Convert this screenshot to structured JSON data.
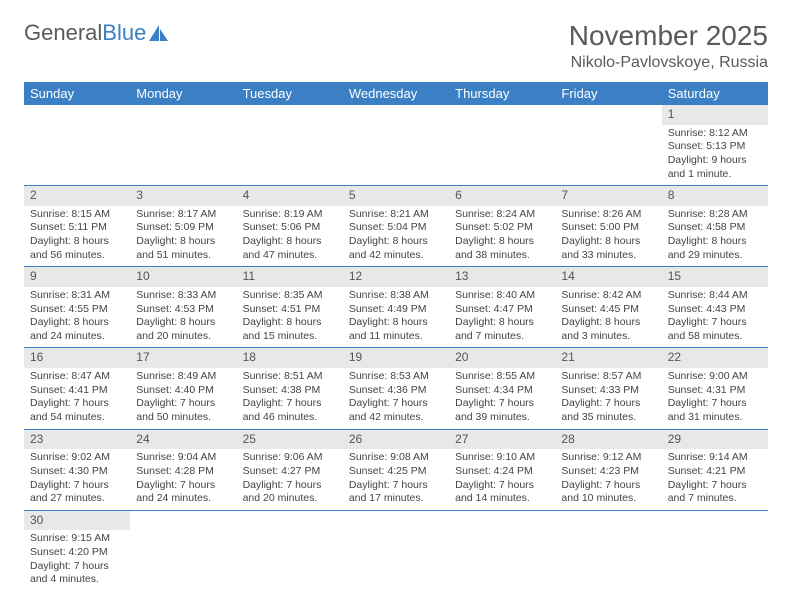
{
  "logo": {
    "text1": "General",
    "text2": "Blue"
  },
  "title": "November 2025",
  "location": "Nikolo-Pavlovskoye, Russia",
  "colors": {
    "header_bg": "#3b7fc4",
    "header_fg": "#ffffff",
    "daynum_bg": "#e8e8e8",
    "row_border": "#3b7fc4",
    "text": "#444444"
  },
  "weekdays": [
    "Sunday",
    "Monday",
    "Tuesday",
    "Wednesday",
    "Thursday",
    "Friday",
    "Saturday"
  ],
  "weeks": [
    [
      null,
      null,
      null,
      null,
      null,
      null,
      {
        "n": "1",
        "sunrise": "8:12 AM",
        "sunset": "5:13 PM",
        "daylight": "9 hours and 1 minute."
      }
    ],
    [
      {
        "n": "2",
        "sunrise": "8:15 AM",
        "sunset": "5:11 PM",
        "daylight": "8 hours and 56 minutes."
      },
      {
        "n": "3",
        "sunrise": "8:17 AM",
        "sunset": "5:09 PM",
        "daylight": "8 hours and 51 minutes."
      },
      {
        "n": "4",
        "sunrise": "8:19 AM",
        "sunset": "5:06 PM",
        "daylight": "8 hours and 47 minutes."
      },
      {
        "n": "5",
        "sunrise": "8:21 AM",
        "sunset": "5:04 PM",
        "daylight": "8 hours and 42 minutes."
      },
      {
        "n": "6",
        "sunrise": "8:24 AM",
        "sunset": "5:02 PM",
        "daylight": "8 hours and 38 minutes."
      },
      {
        "n": "7",
        "sunrise": "8:26 AM",
        "sunset": "5:00 PM",
        "daylight": "8 hours and 33 minutes."
      },
      {
        "n": "8",
        "sunrise": "8:28 AM",
        "sunset": "4:58 PM",
        "daylight": "8 hours and 29 minutes."
      }
    ],
    [
      {
        "n": "9",
        "sunrise": "8:31 AM",
        "sunset": "4:55 PM",
        "daylight": "8 hours and 24 minutes."
      },
      {
        "n": "10",
        "sunrise": "8:33 AM",
        "sunset": "4:53 PM",
        "daylight": "8 hours and 20 minutes."
      },
      {
        "n": "11",
        "sunrise": "8:35 AM",
        "sunset": "4:51 PM",
        "daylight": "8 hours and 15 minutes."
      },
      {
        "n": "12",
        "sunrise": "8:38 AM",
        "sunset": "4:49 PM",
        "daylight": "8 hours and 11 minutes."
      },
      {
        "n": "13",
        "sunrise": "8:40 AM",
        "sunset": "4:47 PM",
        "daylight": "8 hours and 7 minutes."
      },
      {
        "n": "14",
        "sunrise": "8:42 AM",
        "sunset": "4:45 PM",
        "daylight": "8 hours and 3 minutes."
      },
      {
        "n": "15",
        "sunrise": "8:44 AM",
        "sunset": "4:43 PM",
        "daylight": "7 hours and 58 minutes."
      }
    ],
    [
      {
        "n": "16",
        "sunrise": "8:47 AM",
        "sunset": "4:41 PM",
        "daylight": "7 hours and 54 minutes."
      },
      {
        "n": "17",
        "sunrise": "8:49 AM",
        "sunset": "4:40 PM",
        "daylight": "7 hours and 50 minutes."
      },
      {
        "n": "18",
        "sunrise": "8:51 AM",
        "sunset": "4:38 PM",
        "daylight": "7 hours and 46 minutes."
      },
      {
        "n": "19",
        "sunrise": "8:53 AM",
        "sunset": "4:36 PM",
        "daylight": "7 hours and 42 minutes."
      },
      {
        "n": "20",
        "sunrise": "8:55 AM",
        "sunset": "4:34 PM",
        "daylight": "7 hours and 39 minutes."
      },
      {
        "n": "21",
        "sunrise": "8:57 AM",
        "sunset": "4:33 PM",
        "daylight": "7 hours and 35 minutes."
      },
      {
        "n": "22",
        "sunrise": "9:00 AM",
        "sunset": "4:31 PM",
        "daylight": "7 hours and 31 minutes."
      }
    ],
    [
      {
        "n": "23",
        "sunrise": "9:02 AM",
        "sunset": "4:30 PM",
        "daylight": "7 hours and 27 minutes."
      },
      {
        "n": "24",
        "sunrise": "9:04 AM",
        "sunset": "4:28 PM",
        "daylight": "7 hours and 24 minutes."
      },
      {
        "n": "25",
        "sunrise": "9:06 AM",
        "sunset": "4:27 PM",
        "daylight": "7 hours and 20 minutes."
      },
      {
        "n": "26",
        "sunrise": "9:08 AM",
        "sunset": "4:25 PM",
        "daylight": "7 hours and 17 minutes."
      },
      {
        "n": "27",
        "sunrise": "9:10 AM",
        "sunset": "4:24 PM",
        "daylight": "7 hours and 14 minutes."
      },
      {
        "n": "28",
        "sunrise": "9:12 AM",
        "sunset": "4:23 PM",
        "daylight": "7 hours and 10 minutes."
      },
      {
        "n": "29",
        "sunrise": "9:14 AM",
        "sunset": "4:21 PM",
        "daylight": "7 hours and 7 minutes."
      }
    ],
    [
      {
        "n": "30",
        "sunrise": "9:15 AM",
        "sunset": "4:20 PM",
        "daylight": "7 hours and 4 minutes."
      },
      null,
      null,
      null,
      null,
      null,
      null
    ]
  ],
  "labels": {
    "sunrise": "Sunrise:",
    "sunset": "Sunset:",
    "daylight": "Daylight:"
  }
}
